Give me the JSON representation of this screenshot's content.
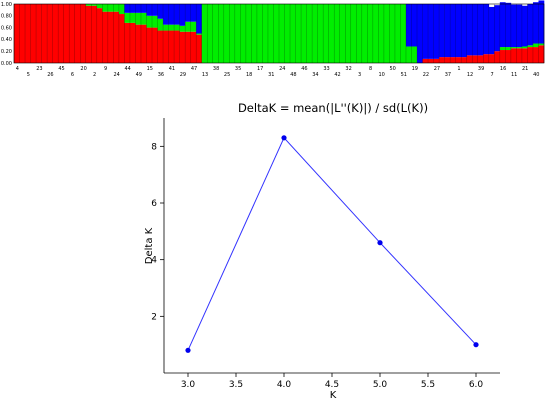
{
  "structure_plot": {
    "y_tick_labels": [
      "1.00",
      "0.80",
      "0.60",
      "0.40",
      "0.20",
      "0.00"
    ],
    "y_tick_values": [
      1.0,
      0.8,
      0.6,
      0.4,
      0.2,
      0.0
    ],
    "cluster_colors": [
      "#ff0000",
      "#00ee00",
      "#0000ff"
    ],
    "sample_labels_upper": [
      "4",
      "23",
      "45",
      "20",
      "9",
      "44",
      "15",
      "41",
      "47",
      "38",
      "35",
      "17",
      "24",
      "46",
      "33",
      "32",
      "8",
      "50",
      "19",
      "27",
      "1",
      "39",
      "16",
      "21"
    ],
    "sample_labels_lower": [
      "5",
      "26",
      "6",
      "2",
      "24",
      "49",
      "36",
      "29",
      "13",
      "25",
      "18",
      "31",
      "48",
      "34",
      "42",
      "3",
      "10",
      "51",
      "22",
      "37",
      "12",
      "7",
      "11",
      "40"
    ]
  },
  "chart_data": [
    {
      "type": "bar",
      "subtype": "stacked_100",
      "series": [
        {
          "name": "",
          "color": "#ff0000",
          "values": [
            1,
            1,
            1,
            1,
            1,
            1,
            1,
            1,
            1,
            1,
            1,
            1,
            1,
            0.97,
            0.97,
            0.93,
            0.87,
            0.87,
            0.87,
            0.83,
            0.68,
            0.68,
            0.65,
            0.65,
            0.6,
            0.6,
            0.55,
            0.55,
            0.55,
            0.55,
            0.53,
            0.53,
            0.53,
            0.48,
            0.0,
            0.0,
            0.0,
            0.0,
            0.0,
            0.0,
            0.0,
            0.0,
            0.0,
            0.0,
            0.0,
            0.0,
            0.0,
            0.0,
            0.0,
            0.0,
            0.0,
            0.0,
            0.0,
            0.0,
            0.0,
            0.0,
            0.0,
            0.0,
            0.0,
            0.0,
            0.0,
            0.0,
            0.0,
            0.0,
            0.0,
            0.0,
            0.0,
            0.0,
            0.0,
            0.0,
            0.0,
            0.0,
            0.0,
            0.0,
            0.07,
            0.07,
            0.07,
            0.1,
            0.1,
            0.1,
            0.1,
            0.1,
            0.13,
            0.13,
            0.13,
            0.15,
            0.15,
            0.2,
            0.22,
            0.22,
            0.25,
            0.25,
            0.25,
            0.27,
            0.27,
            0.3
          ]
        },
        {
          "name": "",
          "color": "#00ee00",
          "values": [
            0,
            0,
            0,
            0,
            0,
            0,
            0,
            0,
            0,
            0,
            0,
            0,
            0,
            0.03,
            0.03,
            0.07,
            0.13,
            0.13,
            0.13,
            0.17,
            0.17,
            0.17,
            0.2,
            0.2,
            0.2,
            0.2,
            0.2,
            0.1,
            0.1,
            0.1,
            0.1,
            0.17,
            0.17,
            0.02,
            1,
            1,
            1,
            1,
            1,
            1,
            1,
            1,
            1,
            1,
            1,
            1,
            1,
            1,
            1,
            1,
            1,
            1,
            1,
            1,
            1,
            1,
            1,
            1,
            1,
            1,
            1,
            1,
            1,
            1,
            1,
            1,
            1,
            1,
            1,
            1,
            1,
            0.28,
            0.28,
            0,
            0,
            0,
            0,
            0,
            0,
            0,
            0,
            0,
            0,
            0,
            0,
            0,
            0,
            0,
            0.05,
            0.05,
            0.02,
            0.02,
            0.03,
            0.03,
            0.06,
            0.03,
            0.03,
            0.0,
            0.02,
            0.05
          ]
        },
        {
          "name": "",
          "color": "#0000ff",
          "values": [
            0,
            0,
            0,
            0,
            0,
            0,
            0,
            0,
            0,
            0,
            0,
            0,
            0,
            0,
            0,
            0,
            0,
            0,
            0,
            0,
            0.15,
            0.15,
            0.15,
            0.15,
            0.2,
            0.2,
            0.25,
            0.35,
            0.35,
            0.35,
            0.37,
            0.3,
            0.3,
            0.5,
            0,
            0,
            0,
            0,
            0,
            0,
            0,
            0,
            0,
            0,
            0,
            0,
            0,
            0,
            0,
            0,
            0,
            0,
            0,
            0,
            0,
            0,
            0,
            0,
            0,
            0,
            0,
            0,
            0,
            0,
            0,
            0,
            0,
            0,
            0,
            0,
            0,
            0.72,
            0.72,
            1,
            0.93,
            0.93,
            0.93,
            0.9,
            0.9,
            0.9,
            0.9,
            0.9,
            0.87,
            0.87,
            0.87,
            0.85,
            0.8,
            0.78,
            0.76,
            0.75,
            0.72,
            0.72,
            0.69,
            0.7,
            0.7,
            0.73,
            0.71,
            0.65
          ]
        }
      ],
      "ylim": [
        0,
        1
      ]
    },
    {
      "type": "line",
      "title": "DeltaK = mean(|L''(K)|) / sd(L(K))",
      "xlabel": "K",
      "ylabel": "Delta K",
      "x": [
        3.0,
        4.0,
        5.0,
        6.0
      ],
      "y": [
        0.8,
        8.3,
        4.6,
        1.0
      ],
      "xlim": [
        2.75,
        6.25
      ],
      "ylim": [
        0.0,
        9.0
      ],
      "x_ticks": [
        "3.0",
        "3.5",
        "4.0",
        "4.5",
        "5.0",
        "5.5",
        "6.0"
      ],
      "x_tick_values": [
        3.0,
        3.5,
        4.0,
        4.5,
        5.0,
        5.5,
        6.0
      ],
      "y_ticks": [
        "2",
        "4",
        "6",
        "8"
      ],
      "y_tick_values": [
        2,
        4,
        6,
        8
      ],
      "line_color": "#3333ff",
      "marker_color": "#0000ee",
      "grid": false,
      "legend": "none"
    }
  ]
}
